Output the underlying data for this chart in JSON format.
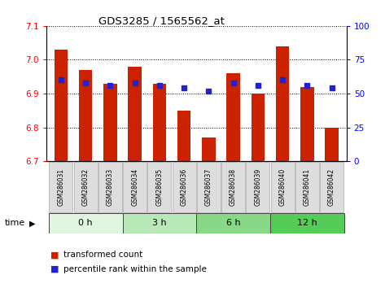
{
  "title": "GDS3285 / 1565562_at",
  "samples": [
    "GSM286031",
    "GSM286032",
    "GSM286033",
    "GSM286034",
    "GSM286035",
    "GSM286036",
    "GSM286037",
    "GSM286038",
    "GSM286039",
    "GSM286040",
    "GSM286041",
    "GSM286042"
  ],
  "red_values": [
    7.03,
    6.97,
    6.93,
    6.98,
    6.93,
    6.85,
    6.77,
    6.96,
    6.9,
    7.04,
    6.92,
    6.8
  ],
  "blue_values": [
    60,
    58,
    56,
    58,
    56,
    54,
    52,
    58,
    56,
    60,
    56,
    54
  ],
  "ylim_left": [
    6.7,
    7.1
  ],
  "ylim_right": [
    0,
    100
  ],
  "yticks_left": [
    6.7,
    6.8,
    6.9,
    7.0,
    7.1
  ],
  "yticks_right": [
    0,
    25,
    50,
    75,
    100
  ],
  "time_groups": [
    {
      "label": "0 h",
      "start": 0,
      "end": 3,
      "color": "#e0f5e0"
    },
    {
      "label": "3 h",
      "start": 3,
      "end": 6,
      "color": "#b8e8b8"
    },
    {
      "label": "6 h",
      "start": 6,
      "end": 9,
      "color": "#88d888"
    },
    {
      "label": "12 h",
      "start": 9,
      "end": 12,
      "color": "#55cc55"
    }
  ],
  "bar_color": "#cc2200",
  "blue_marker_color": "#2222cc",
  "bar_width": 0.55,
  "baseline": 6.7,
  "legend_red": "transformed count",
  "legend_blue": "percentile rank within the sample",
  "sample_box_color": "#dddddd",
  "sample_box_edge": "#aaaaaa"
}
